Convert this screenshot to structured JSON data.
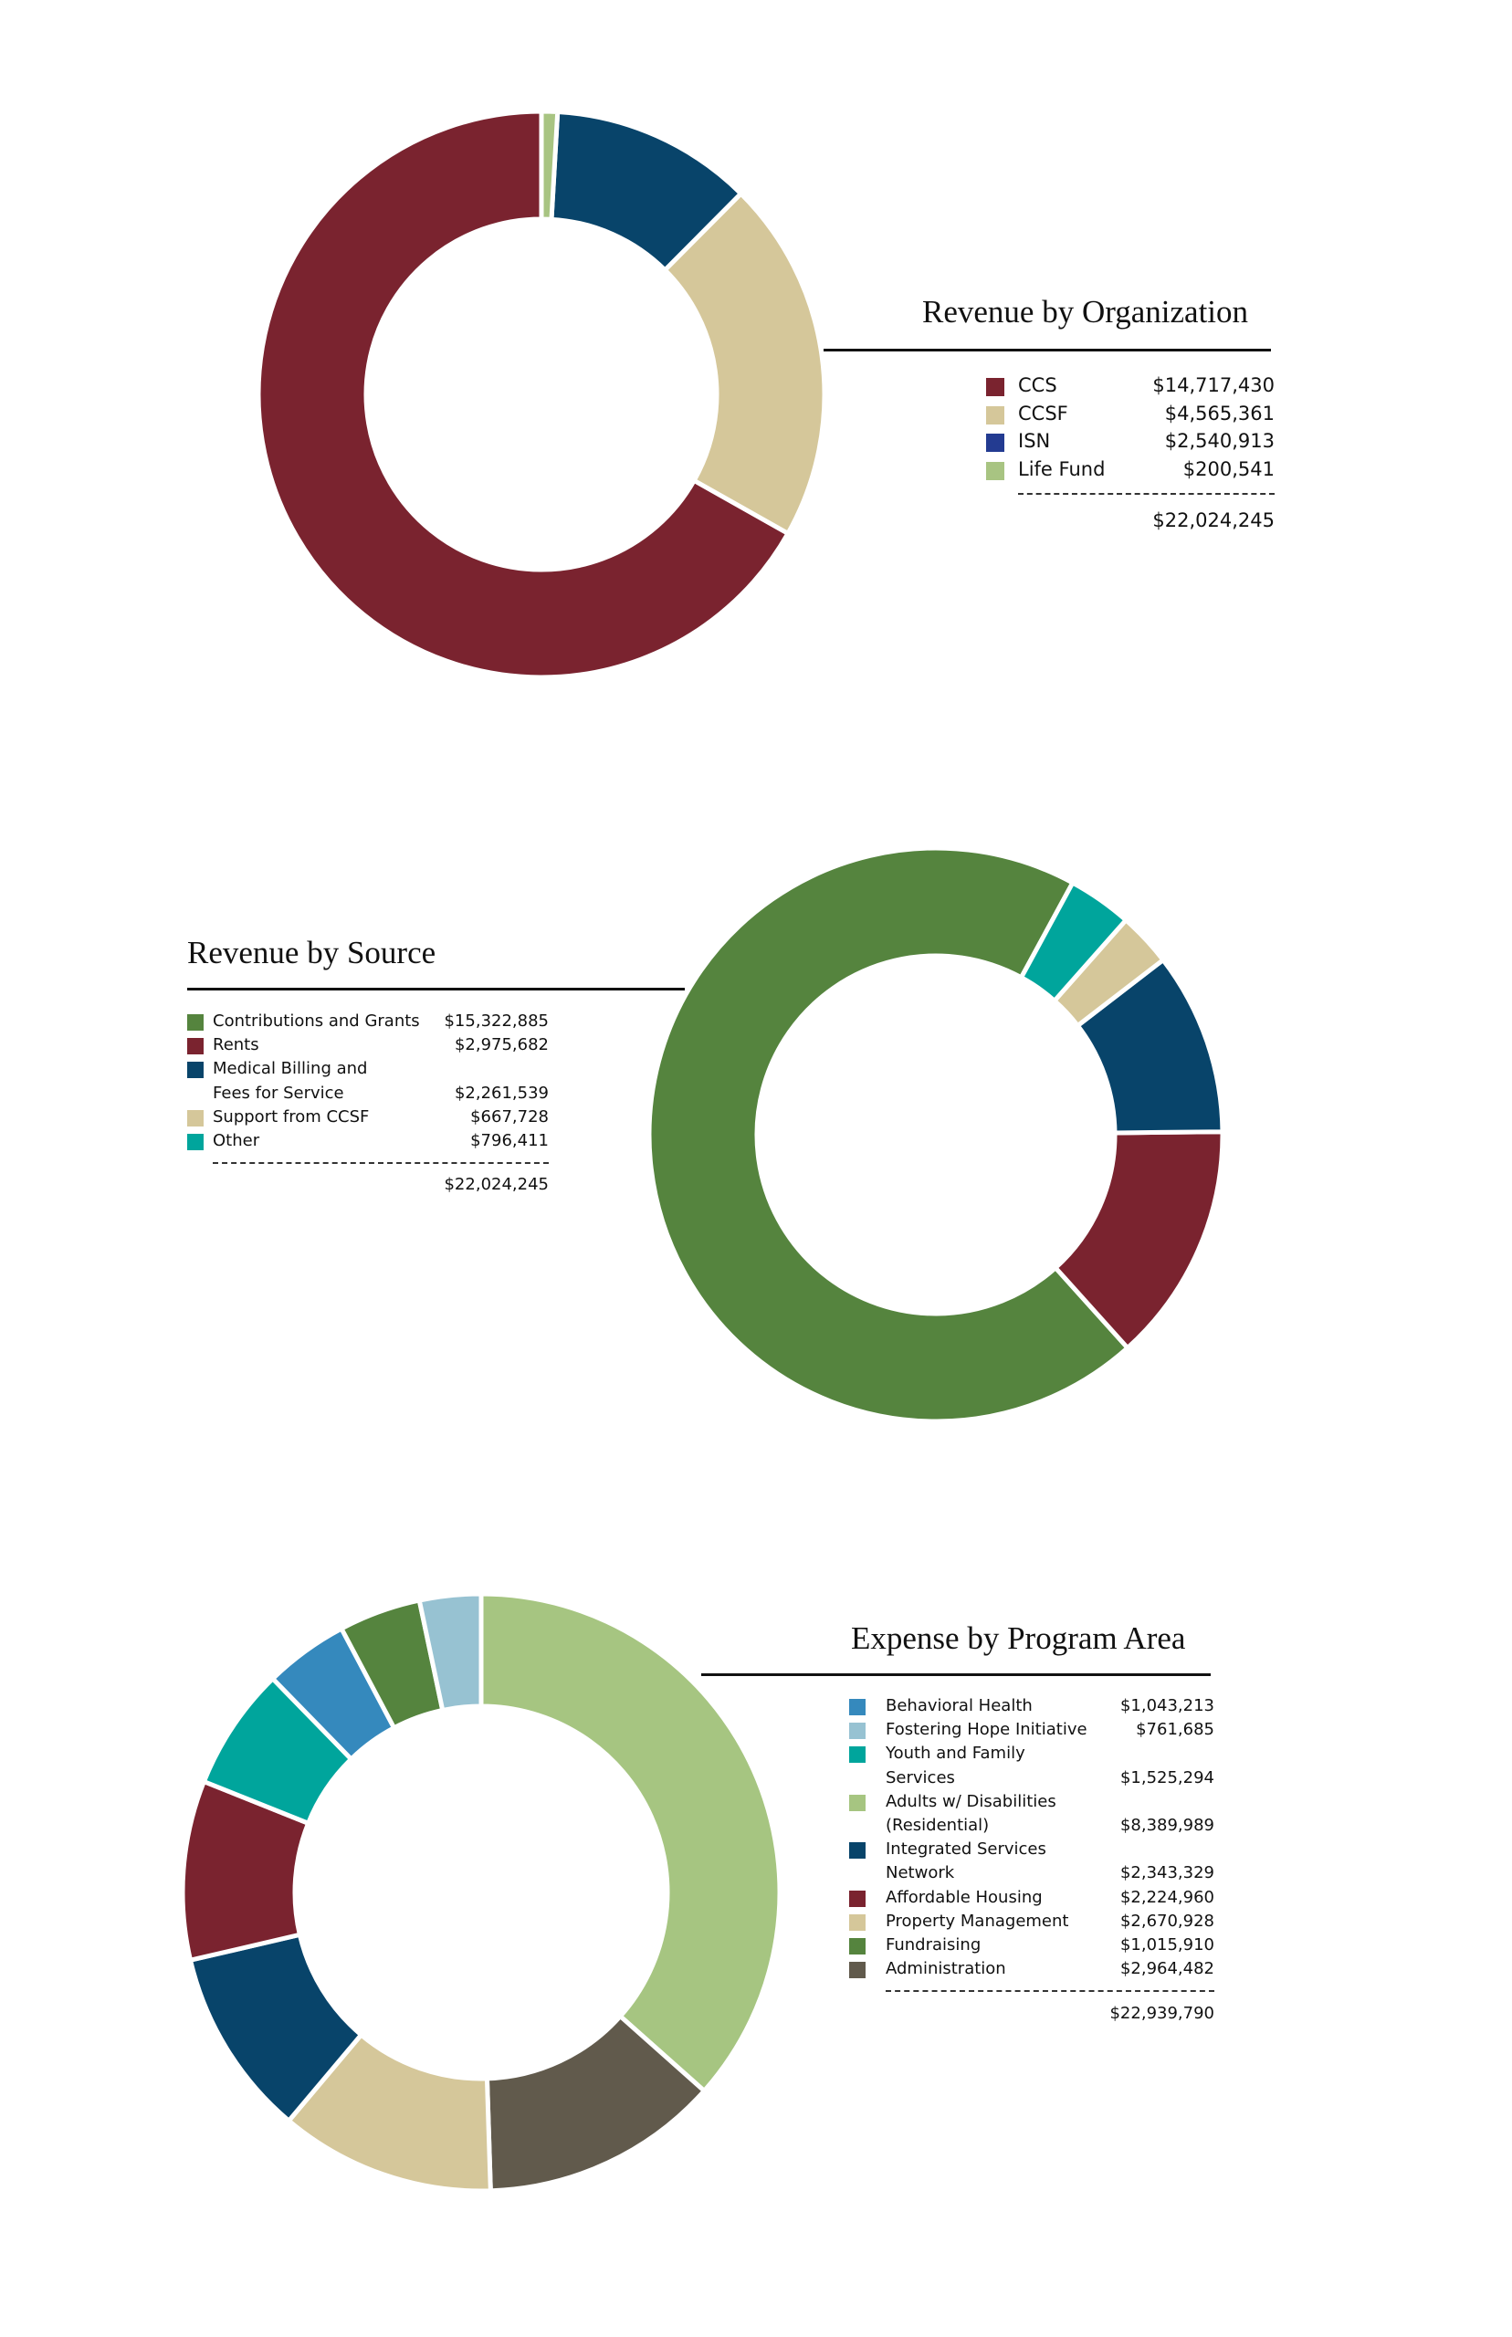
{
  "chart_data": [
    {
      "type": "pie",
      "title": "Revenue by Organization",
      "categories": [
        "CCS",
        "CCSF",
        "ISN",
        "Life Fund"
      ],
      "values": [
        14717430,
        4565361,
        2540913,
        200541
      ],
      "value_labels": [
        "$14,717,430",
        "$4,565,361",
        "$2,540,913",
        "$200,541"
      ],
      "colors": [
        "#7a232f",
        "#d5c79a",
        "#08446a",
        "#a8c482"
      ],
      "legend_colors": [
        "#7a232f",
        "#d5c79a",
        "#233b91",
        "#a8c482"
      ],
      "total_label": "$22,024,245",
      "legend_position": "right"
    },
    {
      "type": "pie",
      "title": "Revenue by Source",
      "categories": [
        "Contributions and Grants",
        "Rents",
        "Medical Billing and Fees for Service",
        "Support from CCSF",
        "Other"
      ],
      "legend_lines": [
        [
          "Contributions and Grants"
        ],
        [
          "Rents"
        ],
        [
          "Medical Billing and",
          "Fees for Service"
        ],
        [
          "Support from CCSF"
        ],
        [
          "Other"
        ]
      ],
      "values": [
        15322885,
        2975682,
        2261539,
        667728,
        796411
      ],
      "value_labels": [
        "$15,322,885",
        "$2,975,682",
        "$2,261,539",
        "$667,728",
        "$796,411"
      ],
      "colors": [
        "#55843e",
        "#7a232f",
        "#08446a",
        "#d5c79a",
        "#00a59c"
      ],
      "total_label": "$22,024,245",
      "legend_position": "left"
    },
    {
      "type": "pie",
      "title": "Expense by Program Area",
      "categories": [
        "Behavioral Health",
        "Fostering Hope Initiative",
        "Youth and Family Services",
        "Adults w/ Disabilities (Residential)",
        "Integrated Services Network",
        "Affordable Housing",
        "Property Management",
        "Fundraising",
        "Administration"
      ],
      "legend_lines": [
        [
          "Behavioral Health"
        ],
        [
          "Fostering Hope Initiative"
        ],
        [
          "Youth and Family",
          "Services"
        ],
        [
          "Adults w/ Disabilities",
          "(Residential)"
        ],
        [
          "Integrated Services",
          "Network"
        ],
        [
          "Affordable Housing"
        ],
        [
          "Property Management"
        ],
        [
          "Fundraising"
        ],
        [
          "Administration"
        ]
      ],
      "values": [
        1043213,
        761685,
        1525294,
        8389989,
        2343329,
        2224960,
        2670928,
        1015910,
        2964482
      ],
      "value_labels": [
        "$1,043,213",
        "$761,685",
        "$1,525,294",
        "$8,389,989",
        "$2,343,329",
        "$2,224,960",
        "$2,670,928",
        "$1,015,910",
        "$2,964,482"
      ],
      "colors": [
        "#3589bd",
        "#97c2d2",
        "#00a59c",
        "#a6c581",
        "#08446a",
        "#7a232f",
        "#d5c79a",
        "#55843e",
        "#615a4c"
      ],
      "total_label": "$22,939,790",
      "legend_position": "right"
    }
  ]
}
